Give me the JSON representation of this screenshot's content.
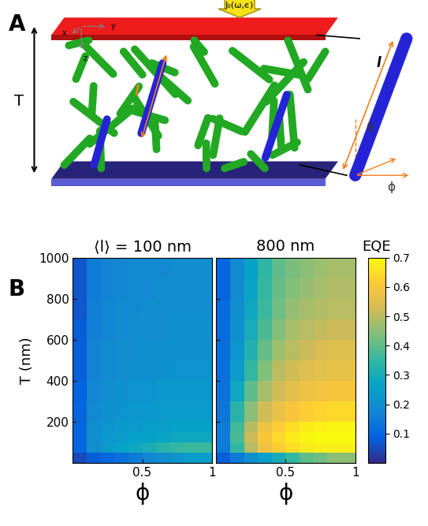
{
  "panel_labels": [
    "A",
    "B"
  ],
  "diagram": {
    "thickness_label": "T",
    "flux_label": "J₀(ω,ϵ)",
    "length_label": "l",
    "angle_labels": [
      "θ",
      "ϕ"
    ],
    "axis_labels": [
      "x",
      "y",
      "z"
    ]
  },
  "chart_data": [
    {
      "type": "heatmap",
      "title": "⟨l⟩ = 100 nm",
      "x_label": "ϕ",
      "y_label": "T (nm)",
      "xlim": [
        0,
        1
      ],
      "ylim": [
        0,
        1000
      ],
      "xticks": [
        0.5,
        1
      ],
      "yticks": [
        200,
        400,
        600,
        800,
        1000
      ],
      "x_edges": [
        0,
        0.1,
        0.2,
        0.3,
        0.4,
        0.5,
        0.6,
        0.7,
        0.8,
        0.9,
        1.0
      ],
      "y_edges": [
        0,
        50,
        100,
        150,
        200,
        300,
        400,
        500,
        600,
        700,
        800,
        900,
        1000
      ],
      "cells": [
        [
          0.05,
          0.08,
          0.1,
          0.12,
          0.15,
          0.18,
          0.2,
          0.22,
          0.25,
          0.25
        ],
        [
          0.1,
          0.2,
          0.24,
          0.26,
          0.28,
          0.3,
          0.33,
          0.35,
          0.36,
          0.36
        ],
        [
          0.1,
          0.2,
          0.23,
          0.24,
          0.25,
          0.26,
          0.27,
          0.28,
          0.28,
          0.28
        ],
        [
          0.1,
          0.2,
          0.22,
          0.23,
          0.24,
          0.25,
          0.25,
          0.26,
          0.26,
          0.26
        ],
        [
          0.1,
          0.19,
          0.21,
          0.22,
          0.23,
          0.23,
          0.24,
          0.24,
          0.24,
          0.24
        ],
        [
          0.09,
          0.18,
          0.2,
          0.21,
          0.22,
          0.22,
          0.23,
          0.23,
          0.23,
          0.23
        ],
        [
          0.08,
          0.17,
          0.19,
          0.2,
          0.21,
          0.21,
          0.21,
          0.22,
          0.22,
          0.22
        ],
        [
          0.08,
          0.17,
          0.19,
          0.2,
          0.2,
          0.21,
          0.21,
          0.21,
          0.21,
          0.21
        ],
        [
          0.08,
          0.16,
          0.18,
          0.19,
          0.2,
          0.2,
          0.2,
          0.21,
          0.21,
          0.21
        ],
        [
          0.07,
          0.16,
          0.18,
          0.19,
          0.19,
          0.2,
          0.2,
          0.2,
          0.2,
          0.2
        ],
        [
          0.07,
          0.15,
          0.17,
          0.18,
          0.19,
          0.19,
          0.2,
          0.2,
          0.2,
          0.2
        ],
        [
          0.07,
          0.15,
          0.17,
          0.18,
          0.19,
          0.19,
          0.19,
          0.2,
          0.2,
          0.2
        ]
      ]
    },
    {
      "type": "heatmap",
      "title": "800 nm",
      "x_label": "ϕ",
      "tick_labels": "x",
      "xlim": [
        0,
        1
      ],
      "ylim": [
        0,
        1000
      ],
      "xticks": [
        0.5,
        1
      ],
      "yticks": [
        200,
        400,
        600,
        800,
        1000
      ],
      "x_edges": [
        0,
        0.1,
        0.2,
        0.3,
        0.4,
        0.5,
        0.6,
        0.7,
        0.8,
        0.9,
        1.0
      ],
      "y_edges": [
        0,
        50,
        100,
        150,
        200,
        300,
        400,
        500,
        600,
        700,
        800,
        900,
        1000
      ],
      "cells": [
        [
          0.08,
          0.15,
          0.2,
          0.25,
          0.3,
          0.35,
          0.4,
          0.42,
          0.45,
          0.45
        ],
        [
          0.15,
          0.35,
          0.5,
          0.58,
          0.62,
          0.65,
          0.67,
          0.68,
          0.68,
          0.68
        ],
        [
          0.15,
          0.38,
          0.52,
          0.6,
          0.64,
          0.67,
          0.69,
          0.7,
          0.7,
          0.7
        ],
        [
          0.15,
          0.37,
          0.5,
          0.58,
          0.62,
          0.65,
          0.67,
          0.68,
          0.69,
          0.69
        ],
        [
          0.14,
          0.33,
          0.45,
          0.53,
          0.57,
          0.6,
          0.62,
          0.63,
          0.64,
          0.64
        ],
        [
          0.13,
          0.28,
          0.4,
          0.48,
          0.53,
          0.56,
          0.58,
          0.59,
          0.6,
          0.6
        ],
        [
          0.12,
          0.24,
          0.35,
          0.44,
          0.5,
          0.53,
          0.55,
          0.56,
          0.57,
          0.57
        ],
        [
          0.12,
          0.22,
          0.32,
          0.41,
          0.47,
          0.5,
          0.52,
          0.54,
          0.55,
          0.55
        ],
        [
          0.11,
          0.21,
          0.3,
          0.38,
          0.44,
          0.48,
          0.5,
          0.51,
          0.52,
          0.52
        ],
        [
          0.11,
          0.2,
          0.28,
          0.36,
          0.42,
          0.46,
          0.48,
          0.49,
          0.5,
          0.5
        ],
        [
          0.1,
          0.19,
          0.27,
          0.35,
          0.41,
          0.44,
          0.46,
          0.48,
          0.49,
          0.49
        ],
        [
          0.1,
          0.19,
          0.26,
          0.34,
          0.4,
          0.43,
          0.45,
          0.47,
          0.48,
          0.48
        ]
      ]
    }
  ],
  "colorbar": {
    "label": "EQE",
    "range": [
      0,
      0.7
    ],
    "ticks": [
      0.1,
      0.2,
      0.3,
      0.4,
      0.5,
      0.6,
      0.7
    ]
  }
}
